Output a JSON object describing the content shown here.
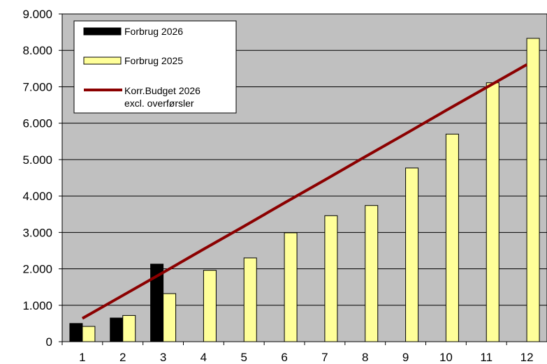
{
  "chart_data": {
    "type": "bar",
    "title": "",
    "xlabel": "",
    "ylabel": "",
    "categories": [
      "1",
      "2",
      "3",
      "4",
      "5",
      "6",
      "7",
      "8",
      "9",
      "10",
      "11",
      "12"
    ],
    "ylim": [
      0,
      9000
    ],
    "yticks": [
      "0",
      "1.000",
      "2.000",
      "3.000",
      "4.000",
      "5.000",
      "6.000",
      "7.000",
      "8.000",
      "9.000"
    ],
    "grid": true,
    "legend_position": "top-left",
    "series": [
      {
        "name": "Forbrug 2026",
        "kind": "bar",
        "color": "#000000",
        "values": [
          500,
          650,
          2130,
          null,
          null,
          null,
          null,
          null,
          null,
          null,
          null,
          null
        ]
      },
      {
        "name": "Forbrug 2025",
        "kind": "bar",
        "color": "#ffff99",
        "values": [
          420,
          720,
          1320,
          1960,
          2300,
          2990,
          3460,
          3740,
          4770,
          5700,
          7110,
          8330
        ]
      },
      {
        "name_lines": [
          "Korr.Budget 2026",
          "excl. overførsler"
        ],
        "kind": "line",
        "color": "#8b0000",
        "values": [
          640,
          1270,
          1900,
          2540,
          3170,
          3810,
          4440,
          5080,
          5710,
          6350,
          6980,
          7610
        ]
      }
    ]
  }
}
